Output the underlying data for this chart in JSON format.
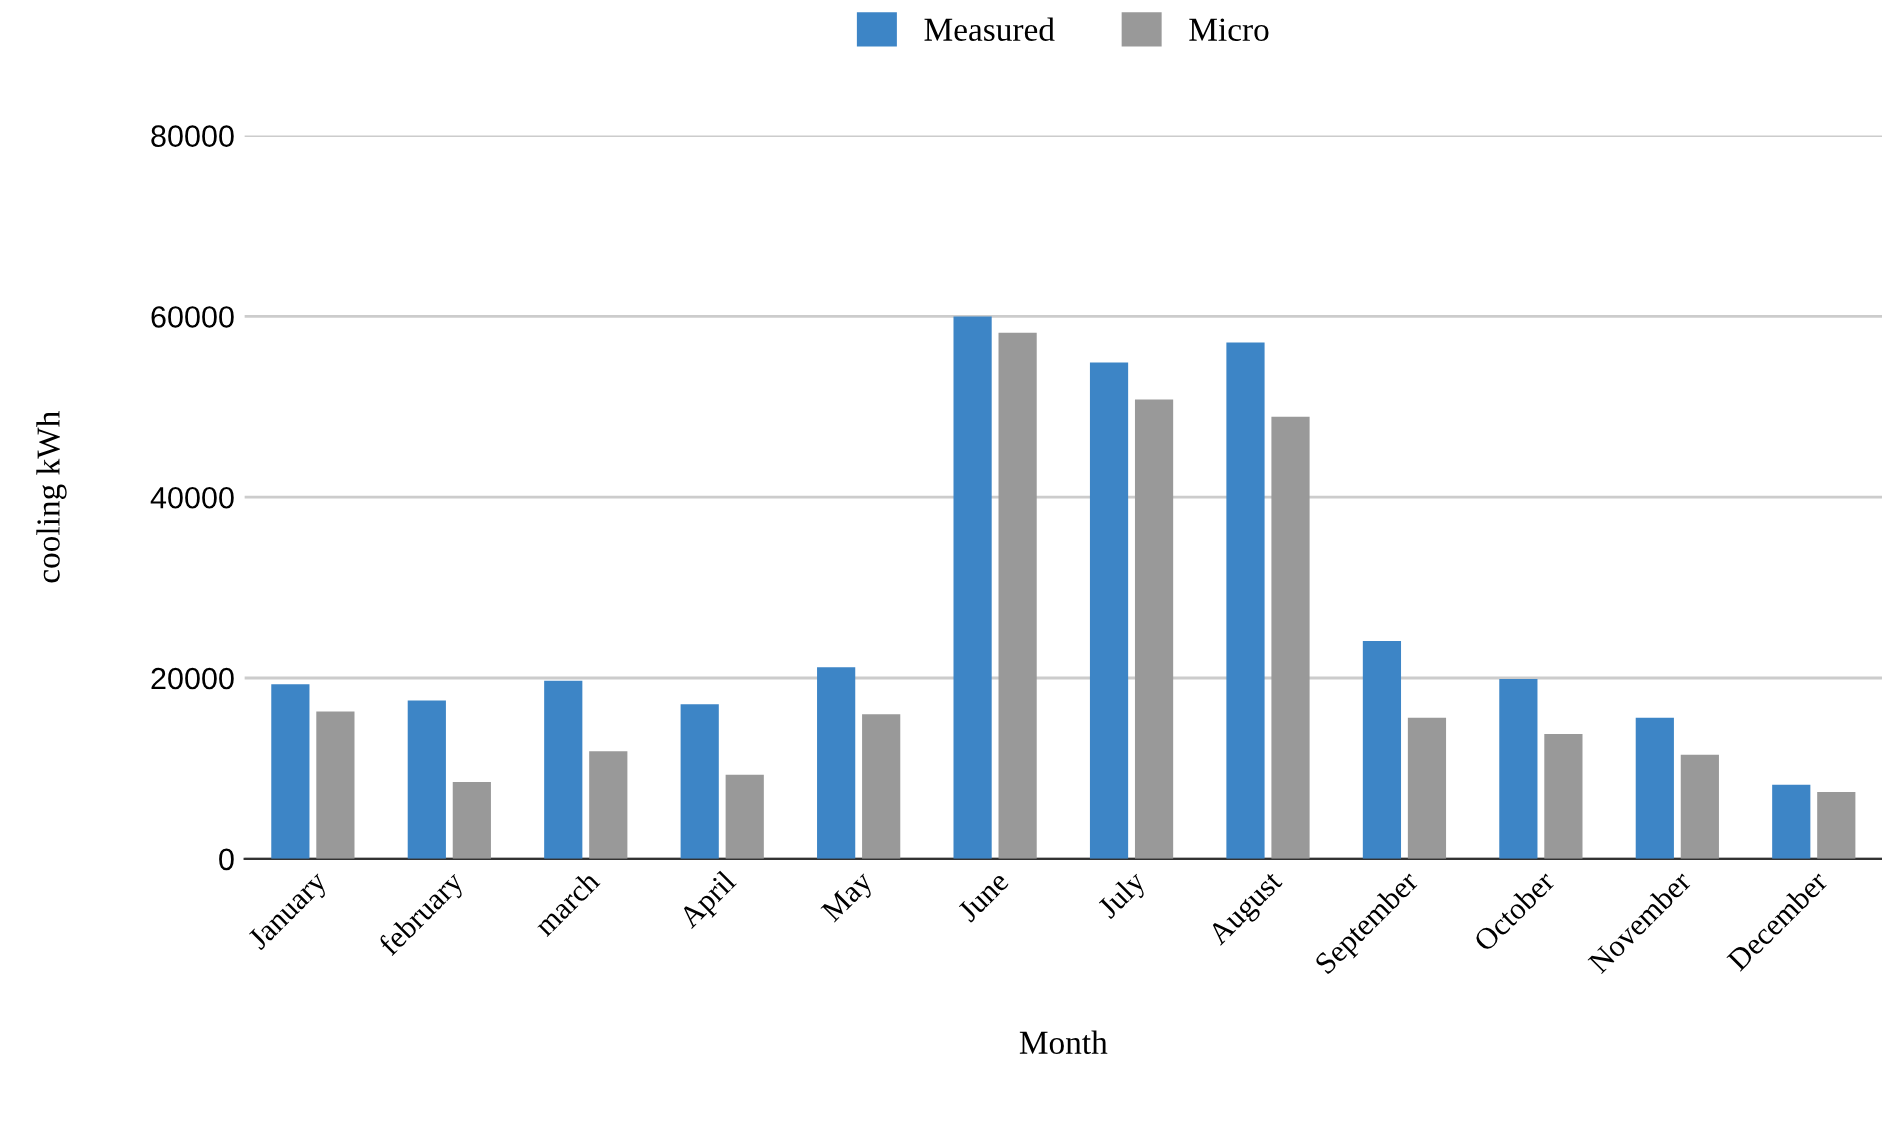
{
  "chart_data": {
    "type": "bar",
    "xlabel": "Month",
    "ylabel": "cooling kWh",
    "categories": [
      "January",
      "february",
      "march",
      "April",
      "May",
      "June",
      "July",
      "August",
      "September",
      "October",
      "November",
      "December"
    ],
    "series": [
      {
        "name": "Measured",
        "color": "#3d85c6",
        "values": [
          19300,
          17500,
          19700,
          17100,
          21200,
          60000,
          54900,
          57100,
          24100,
          19900,
          15600,
          8200
        ]
      },
      {
        "name": "Micro",
        "color": "#999999",
        "values": [
          16300,
          8500,
          11900,
          9300,
          16000,
          58200,
          50800,
          48900,
          15600,
          13800,
          11500,
          7400
        ]
      }
    ],
    "ylim": [
      0,
      80000
    ],
    "yticks": [
      0,
      20000,
      40000,
      60000,
      80000
    ],
    "grid": "y",
    "legend": "top"
  }
}
